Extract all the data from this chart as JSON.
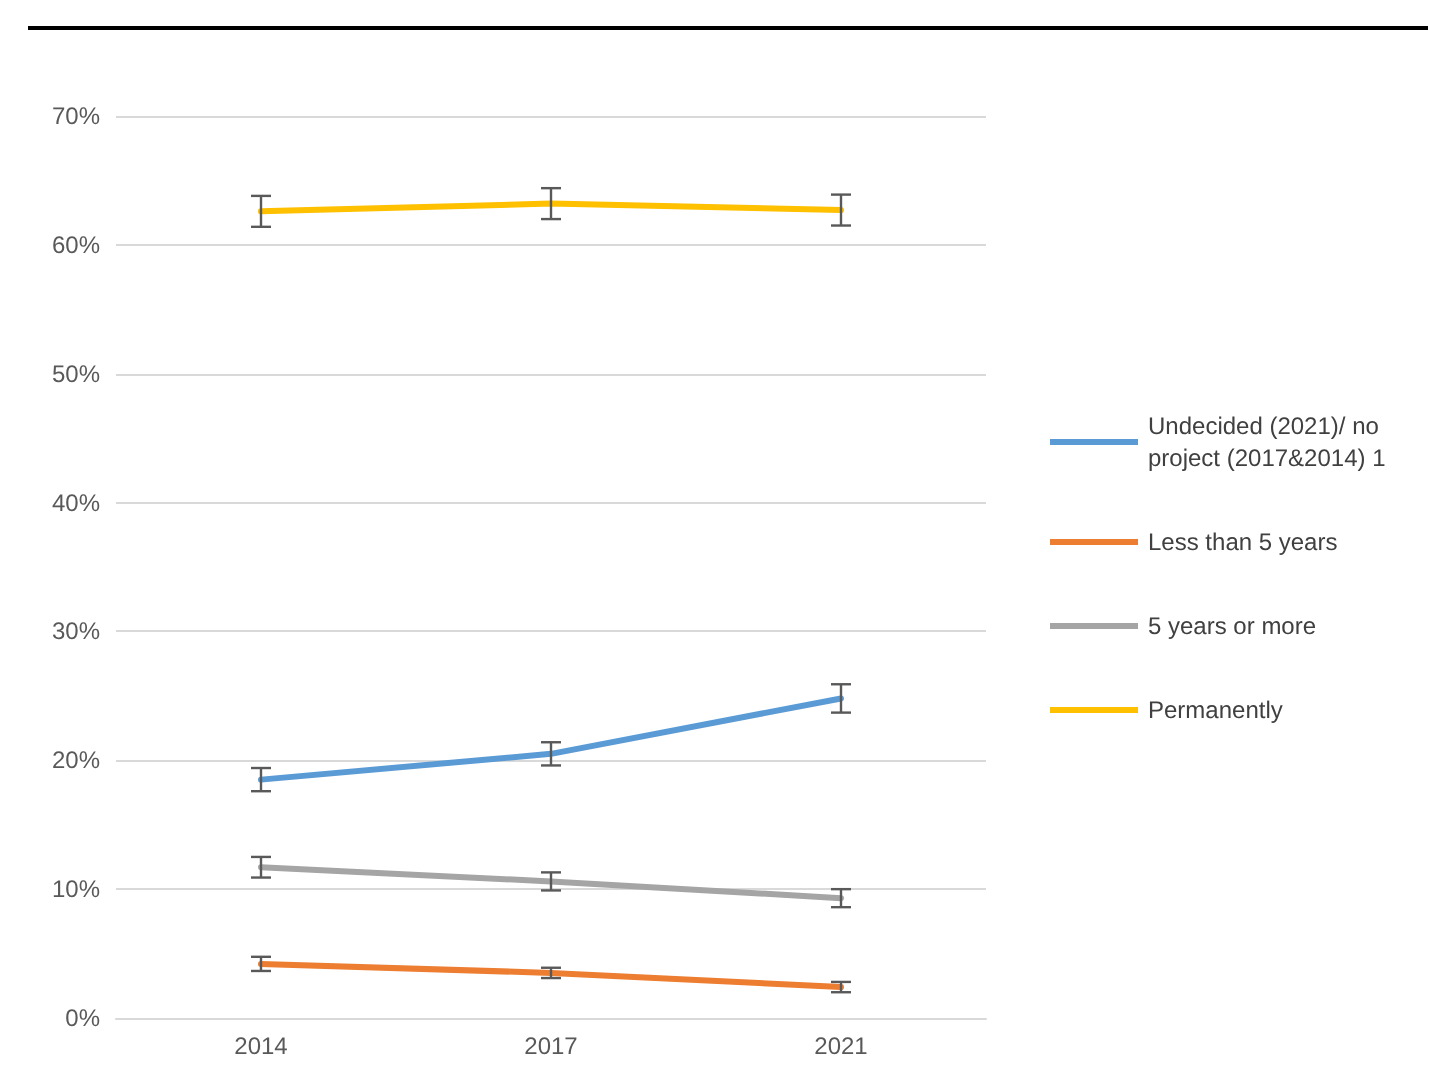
{
  "chart_data": {
    "type": "line",
    "categories": [
      "2014",
      "2017",
      "2021"
    ],
    "series": [
      {
        "name": "Undecided (2021)/ no project (2017&2014) 1",
        "color": "#5b9bd5",
        "values": [
          18.5,
          20.5,
          24.8
        ],
        "errors": [
          0.9,
          0.9,
          1.1
        ]
      },
      {
        "name": "Less than 5 years",
        "color": "#ed7d31",
        "values": [
          4.2,
          3.5,
          2.4
        ],
        "errors": [
          0.55,
          0.4,
          0.4
        ]
      },
      {
        "name": "5 years or more",
        "color": "#a5a5a5",
        "values": [
          11.7,
          10.6,
          9.3
        ],
        "errors": [
          0.8,
          0.7,
          0.7
        ]
      },
      {
        "name": "Permanently",
        "color": "#ffc000",
        "values": [
          62.6,
          63.2,
          62.7
        ],
        "errors": [
          1.2,
          1.2,
          1.2
        ]
      }
    ],
    "ylim": [
      0,
      70
    ],
    "yticks": [
      {
        "value": 0,
        "label": "0%"
      },
      {
        "value": 10,
        "label": "10%"
      },
      {
        "value": 20,
        "label": "20%"
      },
      {
        "value": 30,
        "label": "30%"
      },
      {
        "value": 40,
        "label": "40%"
      },
      {
        "value": 50,
        "label": "50%"
      },
      {
        "value": 60,
        "label": "60%"
      },
      {
        "value": 70,
        "label": "70%"
      }
    ],
    "grid": "y",
    "legend": "right",
    "marker": "none",
    "line_style": "solid"
  }
}
